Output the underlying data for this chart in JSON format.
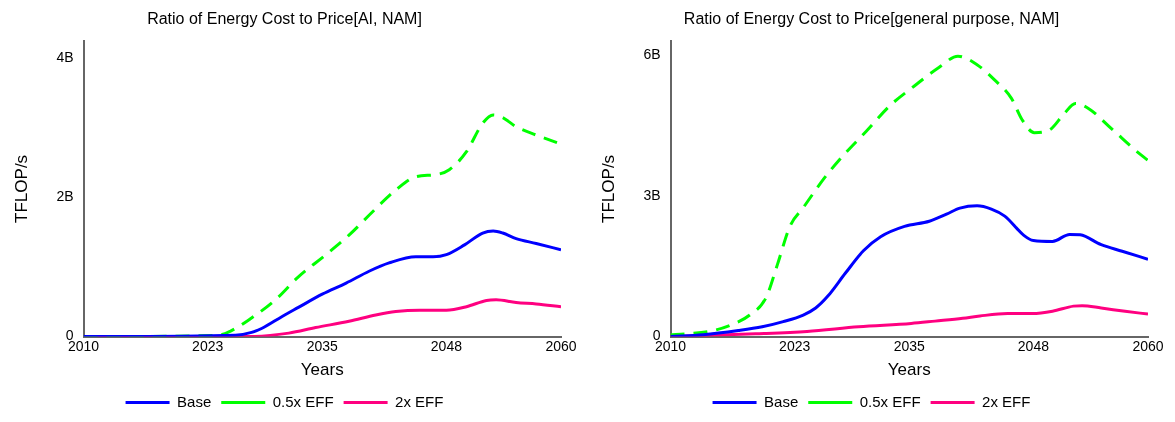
{
  "chart_data": [
    {
      "type": "line",
      "title": "Ratio of Energy Cost to Price[AI, NAM]",
      "xlabel": "Years",
      "ylabel": "TFLOP/s",
      "xlim": [
        2010,
        2060
      ],
      "xticks": [
        2010,
        2023,
        2035,
        2048,
        2060
      ],
      "ylim": [
        0,
        4.25
      ],
      "yticks": [
        {
          "value": 0,
          "label": "0"
        },
        {
          "value": 2,
          "label": "2B"
        },
        {
          "value": 4,
          "label": "4B"
        }
      ],
      "grid": false,
      "legend": "bottom",
      "marker": "none",
      "series": [
        {
          "name": "Base",
          "color": "#0000ff",
          "line_style": "solid",
          "x": [
            2010,
            2025.9,
            2027.6,
            2028.7,
            2030.8,
            2032.5,
            2035.0,
            2037.5,
            2039.9,
            2042.0,
            2044.8,
            2046.6,
            2048.0,
            2049.9,
            2051.8,
            2052.9,
            2053.9,
            2055.3,
            2057.4,
            2060
          ],
          "values": [
            0,
            0.02,
            0.06,
            0.12,
            0.29,
            0.42,
            0.61,
            0.77,
            0.94,
            1.06,
            1.15,
            1.15,
            1.18,
            1.32,
            1.49,
            1.52,
            1.49,
            1.41,
            1.34,
            1.25
          ]
        },
        {
          "name": "0.5x EFF",
          "color": "#00ff00",
          "line_style": "dashed",
          "x": [
            2010,
            2024.1,
            2025.4,
            2027.3,
            2030.1,
            2032.5,
            2035.4,
            2037.8,
            2040.3,
            2042.7,
            2044.8,
            2046.9,
            2048.3,
            2050.1,
            2051.8,
            2052.9,
            2053.9,
            2055.3,
            2057.4,
            2060
          ],
          "values": [
            0,
            0.02,
            0.08,
            0.24,
            0.53,
            0.86,
            1.18,
            1.46,
            1.8,
            2.11,
            2.3,
            2.33,
            2.4,
            2.66,
            3.07,
            3.19,
            3.15,
            3.02,
            2.9,
            2.77
          ]
        },
        {
          "name": "2x EFF",
          "color": "#ff0080",
          "line_style": "solid",
          "x": [
            2010,
            2027.3,
            2031.5,
            2034.3,
            2037.8,
            2040.6,
            2042.7,
            2045.2,
            2048.0,
            2050.1,
            2052.2,
            2053.2,
            2055.3,
            2057.4,
            2060
          ],
          "values": [
            0,
            0,
            0.05,
            0.13,
            0.22,
            0.31,
            0.36,
            0.38,
            0.38,
            0.43,
            0.52,
            0.53,
            0.49,
            0.47,
            0.43
          ]
        }
      ]
    },
    {
      "type": "line",
      "title": "Ratio of Energy Cost to Price[general purpose, NAM]",
      "xlabel": "Years",
      "ylabel": "TFLOP/s",
      "xlim": [
        2010,
        2060
      ],
      "xticks": [
        2010,
        2023,
        2035,
        2048,
        2060
      ],
      "ylim": [
        0,
        6.3
      ],
      "yticks": [
        {
          "value": 0,
          "label": "0"
        },
        {
          "value": 3,
          "label": "3B"
        },
        {
          "value": 6,
          "label": "6B"
        }
      ],
      "grid": false,
      "legend": "bottom",
      "marker": "none",
      "series": [
        {
          "name": "Base",
          "color": "#0000ff",
          "line_style": "solid",
          "x": [
            2010,
            2013.4,
            2017.1,
            2019.6,
            2021.8,
            2023.9,
            2025.2,
            2026.5,
            2028.3,
            2030.2,
            2032.0,
            2034.5,
            2037.1,
            2038.9,
            2040.3,
            2042.1,
            2043.6,
            2045.0,
            2047.0,
            2048.0,
            2050.0,
            2051.8,
            2052.9,
            2055.1,
            2057.3,
            2060
          ],
          "values": [
            0,
            0.04,
            0.13,
            0.21,
            0.32,
            0.46,
            0.61,
            0.87,
            1.35,
            1.83,
            2.13,
            2.35,
            2.46,
            2.61,
            2.74,
            2.79,
            2.72,
            2.57,
            2.16,
            2.05,
            2.03,
            2.18,
            2.17,
            1.96,
            1.82,
            1.65
          ]
        },
        {
          "name": "0.5x EFF",
          "color": "#00ff00",
          "line_style": "dashed",
          "x": [
            2010,
            2011.6,
            2014.5,
            2016.7,
            2018.3,
            2020.0,
            2021.2,
            2022.5,
            2023.9,
            2026.1,
            2027.9,
            2030.5,
            2033.0,
            2035.5,
            2038.1,
            2040.1,
            2042.1,
            2043.9,
            2045.7,
            2046.8,
            2048.1,
            2049.7,
            2051.2,
            2052.4,
            2053.8,
            2056.2,
            2058.7,
            2060
          ],
          "values": [
            0.04,
            0.06,
            0.13,
            0.28,
            0.46,
            0.83,
            1.54,
            2.35,
            2.75,
            3.38,
            3.82,
            4.38,
            4.93,
            5.34,
            5.74,
            5.98,
            5.8,
            5.48,
            5.08,
            4.63,
            4.35,
            4.41,
            4.75,
            4.97,
            4.86,
            4.43,
            3.97,
            3.76
          ]
        },
        {
          "name": "2x EFF",
          "color": "#ff0080",
          "line_style": "solid",
          "x": [
            2010,
            2018.9,
            2024.3,
            2029.7,
            2035.2,
            2037.7,
            2040.6,
            2042.4,
            2045.3,
            2047.9,
            2050.0,
            2052.2,
            2053.1,
            2055.1,
            2057.6,
            2060
          ],
          "values": [
            0,
            0.06,
            0.11,
            0.21,
            0.28,
            0.33,
            0.39,
            0.44,
            0.49,
            0.49,
            0.54,
            0.65,
            0.66,
            0.61,
            0.54,
            0.48
          ]
        }
      ]
    }
  ]
}
